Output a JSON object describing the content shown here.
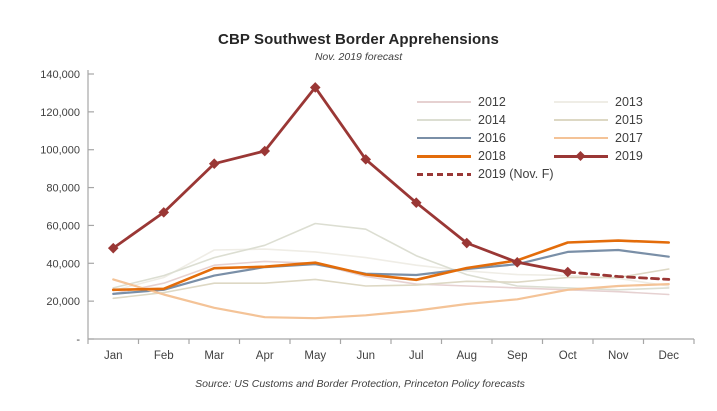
{
  "title": "CBP Southwest Border Apprehensions",
  "subtitle": "Nov. 2019 forecast",
  "source": "Source: US Customs and Border Protection, Princeton Policy forecasts",
  "colors": {
    "axis": "#a6a6a6",
    "text": "#404040",
    "accent_red": "#9a3735",
    "accent_orange": "#e36c0a"
  },
  "chart_data": {
    "type": "line",
    "title": "CBP Southwest Border Apprehensions",
    "subtitle": "Nov. 2019 forecast",
    "x": [
      "Jan",
      "Feb",
      "Mar",
      "Apr",
      "May",
      "Jun",
      "Jul",
      "Aug",
      "Sep",
      "Oct",
      "Nov",
      "Dec"
    ],
    "ylim": [
      0,
      140000
    ],
    "y_tick_step": 20000,
    "y_ticks": [
      "-",
      "20,000",
      "40,000",
      "60,000",
      "80,000",
      "100,000",
      "120,000",
      "140,000"
    ],
    "grid": false,
    "legend_position": "inside-top-right",
    "series": [
      {
        "name": "2012",
        "color": "#e6d1d1",
        "width": 1.6,
        "values": [
          24000,
          29500,
          39000,
          41000,
          40000,
          33000,
          29000,
          28000,
          27000,
          26000,
          25000,
          23500
        ]
      },
      {
        "name": "2013",
        "color": "#efede6",
        "width": 1.6,
        "values": [
          25500,
          32500,
          47000,
          47500,
          46000,
          43000,
          39000,
          36000,
          34000,
          33500,
          32000,
          28000
        ]
      },
      {
        "name": "2014",
        "color": "#dcded2",
        "width": 1.6,
        "values": [
          27000,
          33500,
          43000,
          49500,
          61000,
          58000,
          44000,
          34000,
          28000,
          27000,
          26000,
          27000
        ]
      },
      {
        "name": "2015",
        "color": "#ddd8c4",
        "width": 1.6,
        "values": [
          21500,
          24500,
          29500,
          29500,
          31500,
          28000,
          28500,
          30500,
          30000,
          32500,
          32500,
          37000
        ]
      },
      {
        "name": "2016",
        "color": "#7a8fa7",
        "width": 2.2,
        "values": [
          23800,
          26000,
          33500,
          38000,
          39500,
          34500,
          33800,
          37000,
          39500,
          46000,
          47000,
          43500
        ]
      },
      {
        "name": "2017",
        "color": "#f4c397",
        "width": 2.2,
        "values": [
          31500,
          23500,
          16500,
          11500,
          11000,
          12500,
          15000,
          18500,
          21000,
          26000,
          28000,
          29000
        ]
      },
      {
        "name": "2018",
        "color": "#e36c0a",
        "width": 2.6,
        "values": [
          26000,
          26500,
          37400,
          38200,
          40300,
          34100,
          31300,
          37500,
          41500,
          51000,
          52000,
          51000
        ]
      },
      {
        "name": "2019",
        "color": "#9a3735",
        "width": 2.8,
        "marker": "diamond",
        "values": [
          48000,
          66900,
          92600,
          99300,
          132900,
          94900,
          72000,
          50700,
          40500,
          35400,
          null,
          null
        ]
      },
      {
        "name": "2019 (Nov. F)",
        "color": "#9a3735",
        "width": 2.8,
        "dash": true,
        "values": [
          null,
          null,
          null,
          null,
          null,
          null,
          null,
          null,
          null,
          35400,
          33000,
          31500
        ]
      }
    ]
  }
}
